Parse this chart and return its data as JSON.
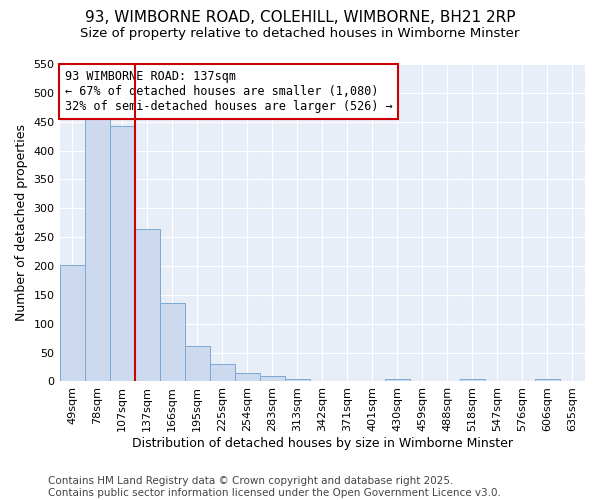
{
  "title": "93, WIMBORNE ROAD, COLEHILL, WIMBORNE, BH21 2RP",
  "subtitle": "Size of property relative to detached houses in Wimborne Minster",
  "xlabel": "Distribution of detached houses by size in Wimborne Minster",
  "ylabel": "Number of detached properties",
  "bar_labels": [
    "49sqm",
    "78sqm",
    "107sqm",
    "137sqm",
    "166sqm",
    "195sqm",
    "225sqm",
    "254sqm",
    "283sqm",
    "313sqm",
    "342sqm",
    "371sqm",
    "401sqm",
    "430sqm",
    "459sqm",
    "488sqm",
    "518sqm",
    "547sqm",
    "576sqm",
    "606sqm",
    "635sqm"
  ],
  "bar_values": [
    201,
    457,
    443,
    265,
    136,
    62,
    31,
    15,
    9,
    5,
    0,
    0,
    0,
    4,
    0,
    0,
    4,
    0,
    0,
    4,
    0
  ],
  "bar_color": "#ccd9ee",
  "bar_edge_color": "#7baad4",
  "vline_after_index": 2,
  "vline_color": "#cc0000",
  "annotation_text": "93 WIMBORNE ROAD: 137sqm\n← 67% of detached houses are smaller (1,080)\n32% of semi-detached houses are larger (526) →",
  "annotation_box_color": "#ffffff",
  "annotation_box_edge": "#cc0000",
  "ylim": [
    0,
    550
  ],
  "yticks": [
    0,
    50,
    100,
    150,
    200,
    250,
    300,
    350,
    400,
    450,
    500,
    550
  ],
  "figure_bg": "#ffffff",
  "axes_bg": "#e8eef8",
  "grid_color": "#ffffff",
  "footer": "Contains HM Land Registry data © Crown copyright and database right 2025.\nContains public sector information licensed under the Open Government Licence v3.0.",
  "title_fontsize": 11,
  "subtitle_fontsize": 9.5,
  "annotation_fontsize": 8.5,
  "footer_fontsize": 7.5,
  "tick_fontsize": 8,
  "xlabel_fontsize": 9,
  "ylabel_fontsize": 9
}
